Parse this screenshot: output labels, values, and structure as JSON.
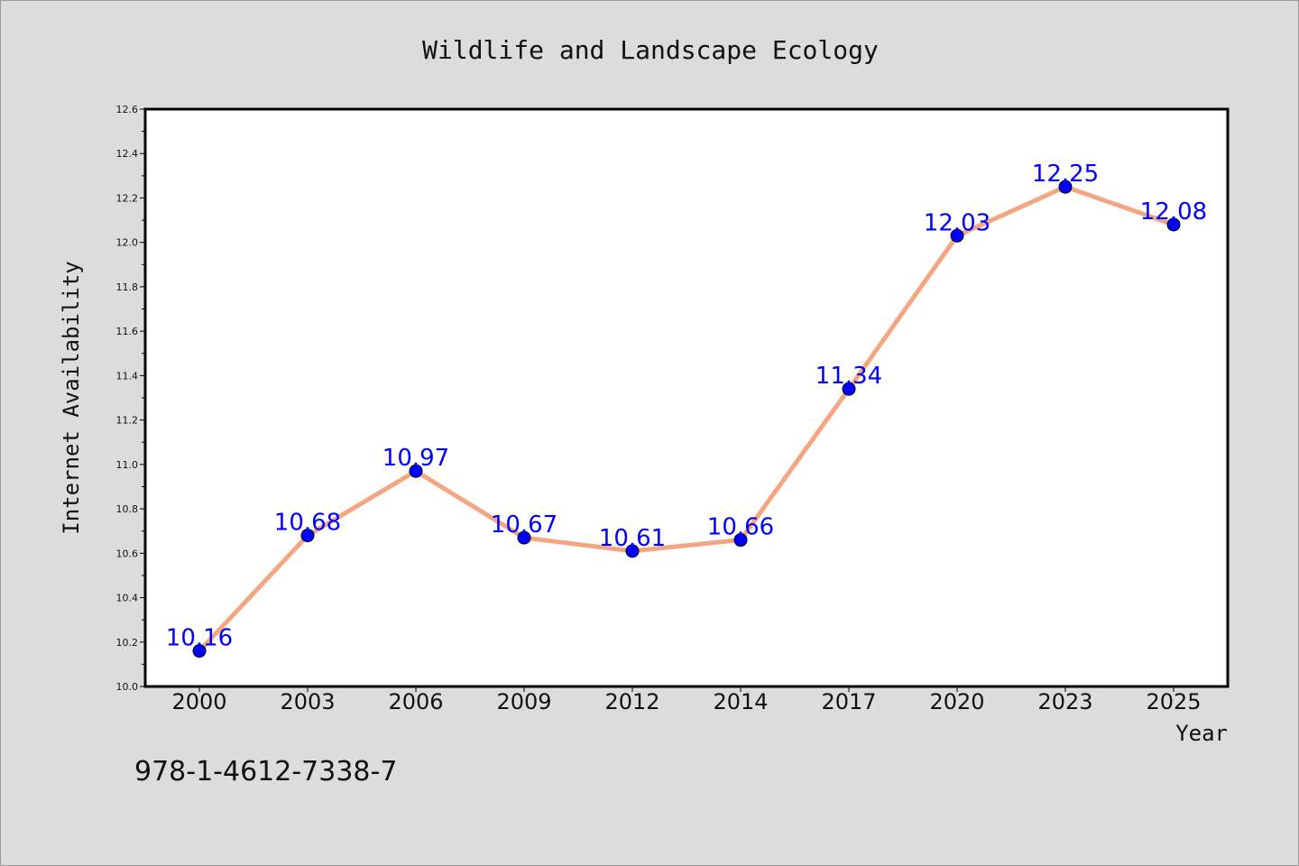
{
  "chart_data": {
    "type": "line",
    "title": "Wildlife and Landscape Ecology",
    "xlabel": "Year",
    "ylabel": "Internet Availability",
    "categories": [
      "2000",
      "2003",
      "2006",
      "2009",
      "2012",
      "2014",
      "2017",
      "2020",
      "2023",
      "2025"
    ],
    "values": [
      10.16,
      10.68,
      10.97,
      10.67,
      10.61,
      10.66,
      11.34,
      12.03,
      12.25,
      12.08
    ],
    "data_labels": [
      "10.16",
      "10.68",
      "10.97",
      "10.67",
      "10.61",
      "10.66",
      "11.34",
      "12.03",
      "12.25",
      "12.08"
    ],
    "ylim": [
      10.0,
      12.6
    ],
    "y_ticks": [
      "10.0",
      "10.2",
      "10.4",
      "10.6",
      "10.8",
      "11.0",
      "11.2",
      "11.4",
      "11.6",
      "11.8",
      "12.0",
      "12.2",
      "12.4",
      "12.6"
    ],
    "grid": false,
    "legend": "none",
    "colors": {
      "background": "#dcdcdc",
      "plot_background": "#ffffff",
      "line": "#f4a582",
      "marker": "#0000ff",
      "data_label": "#0000ff",
      "axes": "#000000"
    }
  },
  "footer": {
    "isbn": "978-1-4612-7338-7"
  }
}
